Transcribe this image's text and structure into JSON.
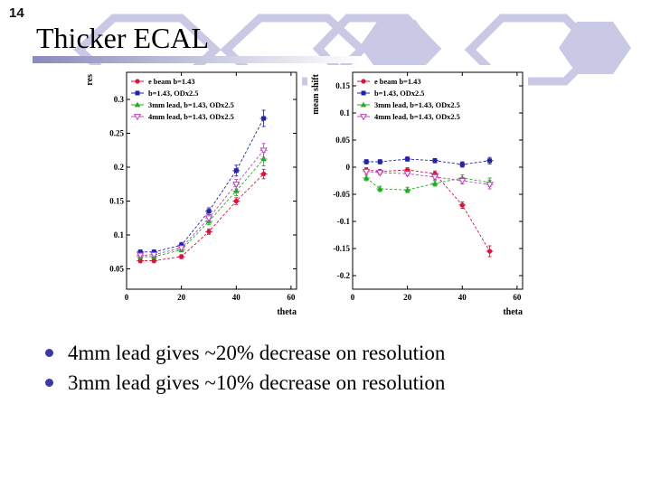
{
  "slide": {
    "page_number": "14",
    "title": "Thicker ECAL",
    "bullets": [
      "4mm lead gives ~20% decrease on resolution",
      "3mm lead gives ~10% decrease on resolution"
    ]
  },
  "colors": {
    "hexagon": "#c9c9e6",
    "gradient_start": "#8a8abd",
    "bullet": "#3a3aa0"
  },
  "chart_data": [
    {
      "type": "scatter",
      "title": "",
      "ylabel": "res",
      "xlabel": "theta",
      "xlim": [
        0,
        62
      ],
      "ylim": [
        0.02,
        0.34
      ],
      "xticks": [
        0,
        20,
        40,
        60
      ],
      "yticks": [
        0.05,
        0.1,
        0.15,
        0.2,
        0.25,
        0.3
      ],
      "grid": false,
      "legend_position": "top-left",
      "x": [
        5,
        10,
        20,
        30,
        40,
        50
      ],
      "series": [
        {
          "name": "e beam b=1.43",
          "marker": "circle",
          "color": "#d8143c",
          "values": [
            0.062,
            0.062,
            0.068,
            0.105,
            0.15,
            0.19
          ],
          "err": [
            0.003,
            0.003,
            0.003,
            0.004,
            0.005,
            0.007
          ]
        },
        {
          "name": "b=1.43, ODx2.5",
          "marker": "square",
          "color": "#2222aa",
          "values": [
            0.075,
            0.075,
            0.085,
            0.135,
            0.195,
            0.272
          ],
          "err": [
            0.003,
            0.003,
            0.004,
            0.005,
            0.008,
            0.012
          ]
        },
        {
          "name": "3mm lead, b=1.43, ODx2.5",
          "marker": "triangle-up",
          "color": "#22aa22",
          "values": [
            0.068,
            0.068,
            0.078,
            0.12,
            0.165,
            0.212
          ],
          "err": [
            0.003,
            0.003,
            0.003,
            0.005,
            0.007,
            0.01
          ]
        },
        {
          "name": "4mm lead, b=1.43, ODx2.5",
          "marker": "triangle-down",
          "color": "#bb44bb",
          "values": [
            0.07,
            0.071,
            0.081,
            0.125,
            0.175,
            0.225
          ],
          "err": [
            0.003,
            0.003,
            0.003,
            0.005,
            0.007,
            0.01
          ]
        }
      ]
    },
    {
      "type": "scatter",
      "title": "",
      "ylabel": "mean shift",
      "xlabel": "theta",
      "xlim": [
        0,
        62
      ],
      "ylim": [
        -0.225,
        0.175
      ],
      "xticks": [
        0,
        20,
        40,
        60
      ],
      "yticks": [
        -0.2,
        -0.15,
        -0.1,
        -0.05,
        0,
        0.05,
        0.1,
        0.15
      ],
      "grid": false,
      "legend_position": "top-left",
      "x": [
        5,
        10,
        20,
        30,
        40,
        50
      ],
      "series": [
        {
          "name": "e beam b=1.43",
          "marker": "circle",
          "color": "#d8143c",
          "values": [
            -0.005,
            -0.008,
            -0.005,
            -0.012,
            -0.07,
            -0.155
          ],
          "err": [
            0.004,
            0.004,
            0.004,
            0.005,
            0.006,
            0.01
          ]
        },
        {
          "name": "b=1.43, ODx2.5",
          "marker": "square",
          "color": "#2222aa",
          "values": [
            0.01,
            0.01,
            0.015,
            0.012,
            0.005,
            0.012
          ],
          "err": [
            0.004,
            0.004,
            0.004,
            0.004,
            0.005,
            0.006
          ]
        },
        {
          "name": "3mm lead, b=1.43, ODx2.5",
          "marker": "triangle-up",
          "color": "#22aa22",
          "values": [
            -0.02,
            -0.04,
            -0.042,
            -0.03,
            -0.02,
            -0.028
          ],
          "err": [
            0.005,
            0.005,
            0.005,
            0.005,
            0.006,
            0.008
          ]
        },
        {
          "name": "4mm lead, b=1.43, ODx2.5",
          "marker": "triangle-down",
          "color": "#bb44bb",
          "values": [
            -0.008,
            -0.01,
            -0.012,
            -0.018,
            -0.025,
            -0.032
          ],
          "err": [
            0.004,
            0.004,
            0.004,
            0.005,
            0.006,
            0.008
          ]
        }
      ]
    }
  ]
}
